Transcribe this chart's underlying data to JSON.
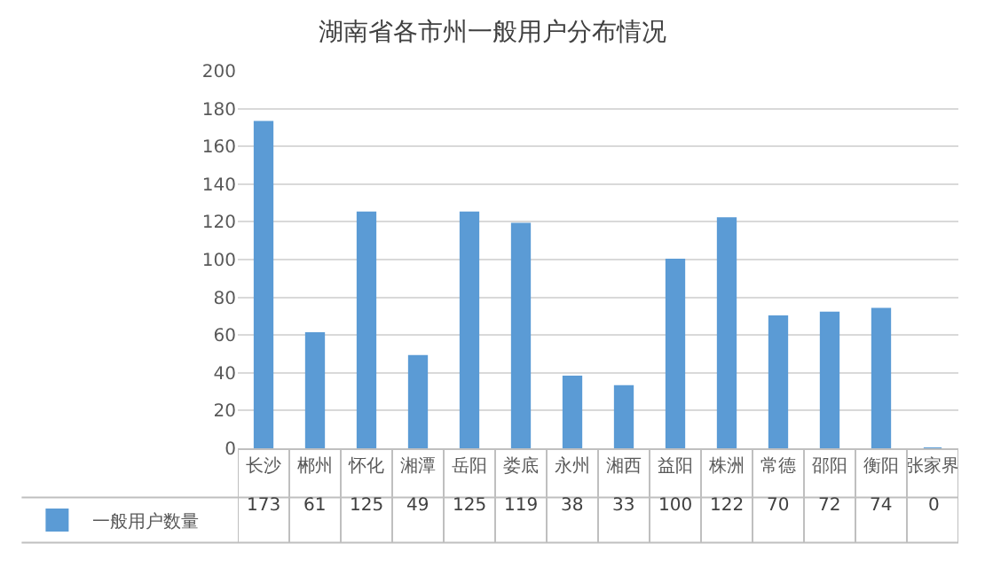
{
  "chart_data": {
    "type": "bar",
    "title": "湖南省各市州一般用户分布情况",
    "categories": [
      "长沙",
      "郴州",
      "怀化",
      "湘潭",
      "岳阳",
      "娄底",
      "永州",
      "湘西",
      "益阳",
      "株洲",
      "常德",
      "邵阳",
      "衡阳",
      "张家界"
    ],
    "series": [
      {
        "name": "一般用户数量",
        "color": "#5b9bd5",
        "values": [
          173,
          61,
          125,
          49,
          125,
          119,
          38,
          33,
          100,
          122,
          70,
          72,
          74,
          0
        ]
      }
    ],
    "ylim": [
      0,
      200
    ],
    "yticks": [
      0,
      20,
      40,
      60,
      80,
      100,
      120,
      140,
      160,
      180,
      200
    ],
    "grid": "y",
    "legend": "bottom left",
    "data_labels": true
  }
}
